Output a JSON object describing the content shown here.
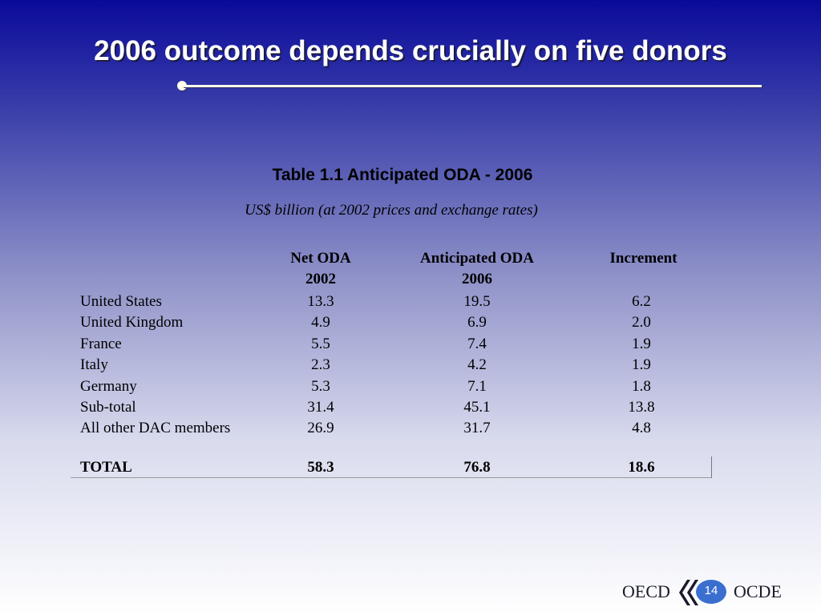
{
  "slide": {
    "title": "2006 outcome depends crucially on five donors",
    "page_number": "14"
  },
  "table": {
    "title": "Table 1.1 Anticipated ODA - 2006",
    "subtitle": "US$ billion (at 2002 prices and exchange rates)",
    "headers": {
      "col1_line1": "Net ODA",
      "col1_line2": "2002",
      "col2_line1": "Anticipated ODA",
      "col2_line2": "2006",
      "col3_line1": "Increment"
    },
    "rows": [
      {
        "label": "United States",
        "net_2002": "13.3",
        "anticipated_2006": "19.5",
        "increment": "6.2"
      },
      {
        "label": "United Kingdom",
        "net_2002": "4.9",
        "anticipated_2006": "6.9",
        "increment": "2.0"
      },
      {
        "label": "France",
        "net_2002": "5.5",
        "anticipated_2006": "7.4",
        "increment": "1.9"
      },
      {
        "label": "Italy",
        "net_2002": "2.3",
        "anticipated_2006": "4.2",
        "increment": "1.9"
      },
      {
        "label": "Germany",
        "net_2002": "5.3",
        "anticipated_2006": "7.1",
        "increment": "1.8"
      },
      {
        "label": "Sub-total",
        "net_2002": "31.4",
        "anticipated_2006": "45.1",
        "increment": "13.8"
      },
      {
        "label": "All other DAC members",
        "net_2002": "26.9",
        "anticipated_2006": "31.7",
        "increment": "4.8"
      }
    ],
    "total": {
      "label": "TOTAL",
      "net_2002": "58.3",
      "anticipated_2006": "76.8",
      "increment": "18.6"
    }
  },
  "footer": {
    "logo_left": "OECD",
    "logo_right": "OCDE",
    "logo_icon": "oecd-chevron-icon"
  }
}
